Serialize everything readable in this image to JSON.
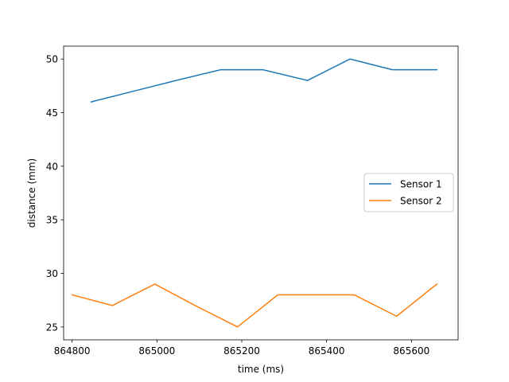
{
  "chart_data": {
    "type": "line",
    "title": "",
    "xlabel": "time (ms)",
    "ylabel": "distance (mm)",
    "xlim": [
      864780,
      865710
    ],
    "ylim": [
      23.8,
      51.2
    ],
    "xticks": [
      864800,
      865000,
      865200,
      865400,
      865600
    ],
    "yticks": [
      25,
      30,
      35,
      40,
      45,
      50
    ],
    "grid": false,
    "legend_position": "center-right",
    "series": [
      {
        "name": "Sensor 1",
        "color": "#1f77b4",
        "x": [
          864845,
          864945,
          865045,
          865150,
          865250,
          865355,
          865455,
          865555,
          865660
        ],
        "y": [
          46,
          47,
          48,
          49,
          49,
          48,
          50,
          49,
          49
        ]
      },
      {
        "name": "Sensor 2",
        "color": "#ff7f0e",
        "x": [
          864800,
          864895,
          864995,
          865090,
          865190,
          865285,
          865375,
          865465,
          865565,
          865660
        ],
        "y": [
          28,
          27,
          29,
          27,
          25,
          28,
          28,
          28,
          26,
          29
        ]
      }
    ]
  }
}
